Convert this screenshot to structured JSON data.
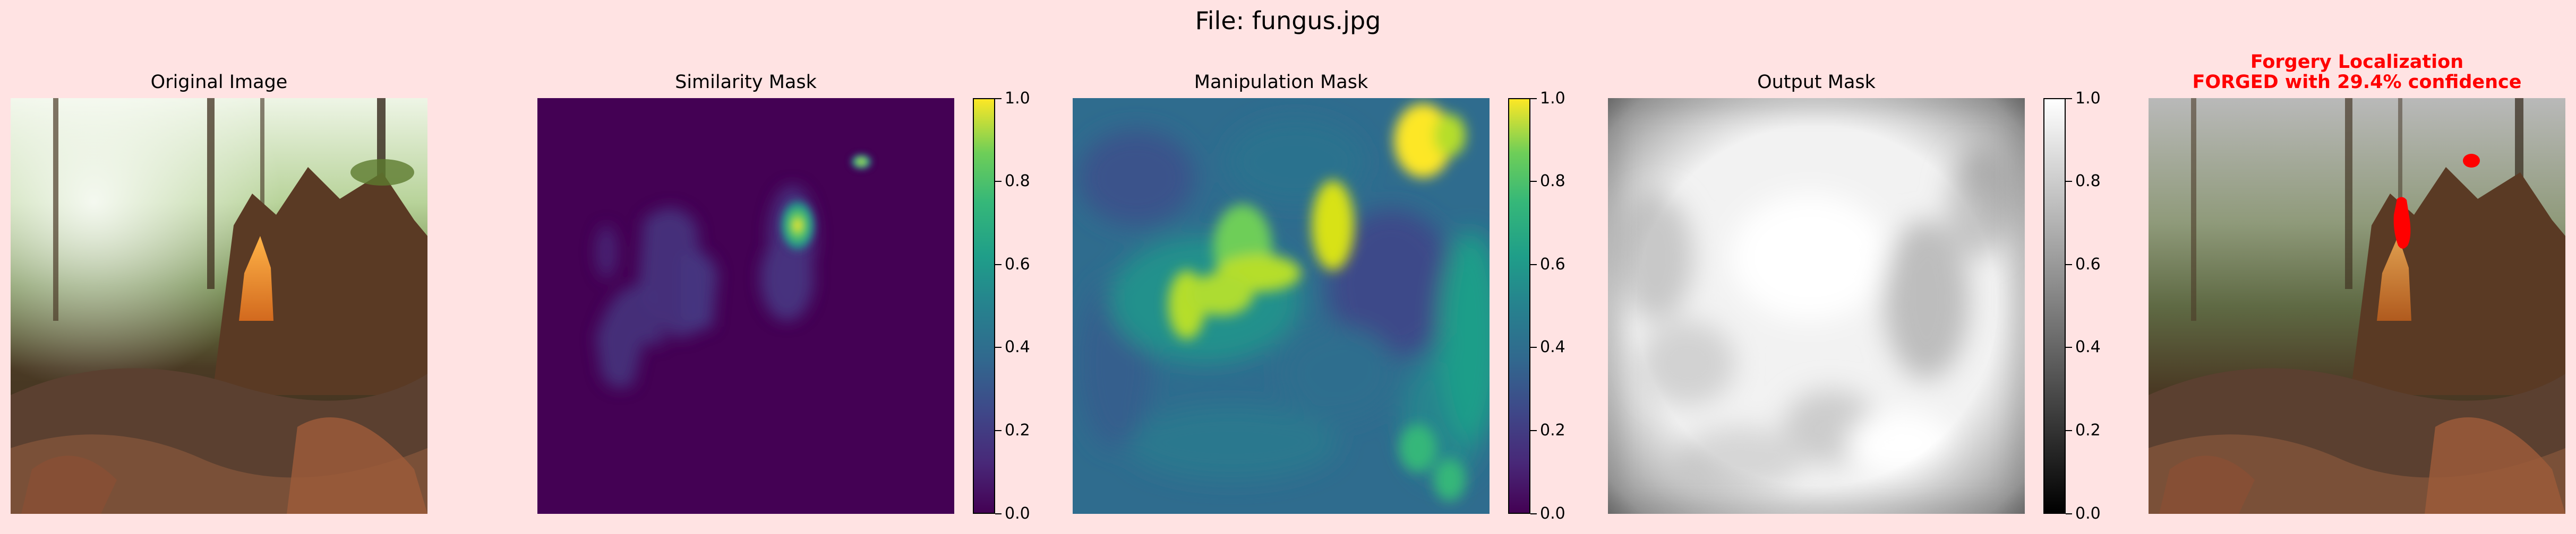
{
  "figure": {
    "title": "File: fungus.jpg",
    "background": "#ffe3e3"
  },
  "panels": [
    {
      "title": "Original Image",
      "subtitle": ""
    },
    {
      "title": "Similarity Mask",
      "subtitle": ""
    },
    {
      "title": "Manipulation Mask",
      "subtitle": ""
    },
    {
      "title": "Output Mask",
      "subtitle": ""
    },
    {
      "title": "Forgery Localization",
      "subtitle": "FORGED with 29.4% confidence",
      "title_color": "#ff0000"
    }
  ],
  "colorbars": [
    {
      "colormap": "viridis",
      "ticks": [
        "0.0",
        "0.2",
        "0.4",
        "0.6",
        "0.8",
        "1.0"
      ]
    },
    {
      "colormap": "viridis",
      "ticks": [
        "0.0",
        "0.2",
        "0.4",
        "0.6",
        "0.8",
        "1.0"
      ]
    },
    {
      "colormap": "gray",
      "ticks": [
        "0.0",
        "0.2",
        "0.4",
        "0.6",
        "0.8",
        "1.0"
      ]
    }
  ]
}
